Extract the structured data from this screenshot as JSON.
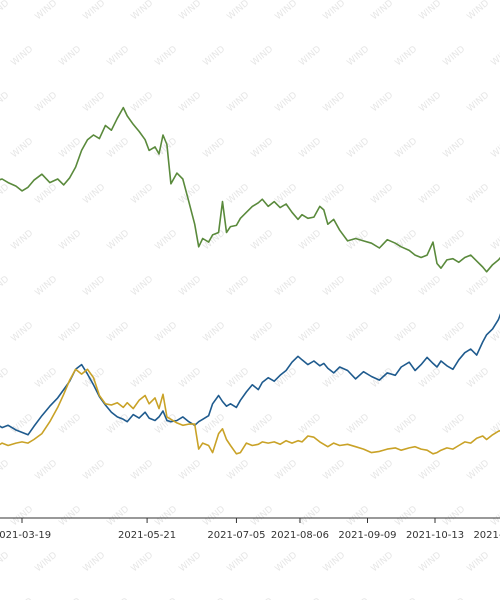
{
  "chart_data": {
    "type": "line",
    "title": "",
    "xlabel": "",
    "ylabel": "",
    "grid": false,
    "legend": "none",
    "watermark_text": "WIND",
    "x_ticks": [
      "2021-03-19",
      "2021-05-21",
      "2021-07-05",
      "2021-08-06",
      "2021-09-09",
      "2021-10-13",
      "2021-11-16"
    ],
    "series": [
      {
        "color": "#5a8a3c",
        "points": [
          [
            "2021-02-23",
            2.42
          ],
          [
            "2021-02-28",
            2.4
          ],
          [
            "2021-03-05",
            2.5
          ],
          [
            "2021-03-09",
            2.52
          ],
          [
            "2021-03-12",
            2.49
          ],
          [
            "2021-03-16",
            2.46
          ],
          [
            "2021-03-19",
            2.42
          ],
          [
            "2021-03-22",
            2.45
          ],
          [
            "2021-03-25",
            2.51
          ],
          [
            "2021-03-29",
            2.56
          ],
          [
            "2021-04-02",
            2.49
          ],
          [
            "2021-04-06",
            2.52
          ],
          [
            "2021-04-09",
            2.47
          ],
          [
            "2021-04-12",
            2.53
          ],
          [
            "2021-04-15",
            2.62
          ],
          [
            "2021-04-18",
            2.76
          ],
          [
            "2021-04-21",
            2.85
          ],
          [
            "2021-04-24",
            2.89
          ],
          [
            "2021-04-27",
            2.86
          ],
          [
            "2021-04-30",
            2.97
          ],
          [
            "2021-05-03",
            2.93
          ],
          [
            "2021-05-06",
            3.03
          ],
          [
            "2021-05-09",
            3.12
          ],
          [
            "2021-05-11",
            3.05
          ],
          [
            "2021-05-14",
            2.98
          ],
          [
            "2021-05-17",
            2.92
          ],
          [
            "2021-05-20",
            2.85
          ],
          [
            "2021-05-22",
            2.76
          ],
          [
            "2021-05-25",
            2.79
          ],
          [
            "2021-05-27",
            2.73
          ],
          [
            "2021-05-29",
            2.89
          ],
          [
            "2021-05-31",
            2.81
          ],
          [
            "2021-06-02",
            2.48
          ],
          [
            "2021-06-05",
            2.57
          ],
          [
            "2021-06-08",
            2.52
          ],
          [
            "2021-06-11",
            2.33
          ],
          [
            "2021-06-14",
            2.14
          ],
          [
            "2021-06-16",
            1.95
          ],
          [
            "2021-06-18",
            2.02
          ],
          [
            "2021-06-21",
            1.99
          ],
          [
            "2021-06-23",
            2.05
          ],
          [
            "2021-06-26",
            2.07
          ],
          [
            "2021-06-28",
            2.33
          ],
          [
            "2021-06-30",
            2.07
          ],
          [
            "2021-07-02",
            2.12
          ],
          [
            "2021-07-05",
            2.13
          ],
          [
            "2021-07-07",
            2.19
          ],
          [
            "2021-07-10",
            2.24
          ],
          [
            "2021-07-13",
            2.29
          ],
          [
            "2021-07-16",
            2.32
          ],
          [
            "2021-07-18",
            2.35
          ],
          [
            "2021-07-21",
            2.29
          ],
          [
            "2021-07-24",
            2.33
          ],
          [
            "2021-07-27",
            2.28
          ],
          [
            "2021-07-30",
            2.31
          ],
          [
            "2021-08-02",
            2.24
          ],
          [
            "2021-08-05",
            2.18
          ],
          [
            "2021-08-07",
            2.22
          ],
          [
            "2021-08-10",
            2.19
          ],
          [
            "2021-08-13",
            2.2
          ],
          [
            "2021-08-16",
            2.29
          ],
          [
            "2021-08-18",
            2.26
          ],
          [
            "2021-08-20",
            2.14
          ],
          [
            "2021-08-23",
            2.18
          ],
          [
            "2021-08-26",
            2.09
          ],
          [
            "2021-08-30",
            2.0
          ],
          [
            "2021-09-03",
            2.02
          ],
          [
            "2021-09-07",
            2.0
          ],
          [
            "2021-09-11",
            1.98
          ],
          [
            "2021-09-15",
            1.94
          ],
          [
            "2021-09-19",
            2.01
          ],
          [
            "2021-09-23",
            1.98
          ],
          [
            "2021-09-26",
            1.95
          ],
          [
            "2021-09-30",
            1.92
          ],
          [
            "2021-10-03",
            1.88
          ],
          [
            "2021-10-06",
            1.86
          ],
          [
            "2021-10-09",
            1.88
          ],
          [
            "2021-10-12",
            1.99
          ],
          [
            "2021-10-14",
            1.81
          ],
          [
            "2021-10-16",
            1.77
          ],
          [
            "2021-10-19",
            1.84
          ],
          [
            "2021-10-22",
            1.85
          ],
          [
            "2021-10-25",
            1.82
          ],
          [
            "2021-10-28",
            1.86
          ],
          [
            "2021-10-31",
            1.88
          ],
          [
            "2021-11-03",
            1.83
          ],
          [
            "2021-11-06",
            1.78
          ],
          [
            "2021-11-08",
            1.74
          ],
          [
            "2021-11-11",
            1.8
          ],
          [
            "2021-11-14",
            1.84
          ],
          [
            "2021-11-16",
            1.88
          ]
        ]
      },
      {
        "color": "#1f5b8e",
        "points": [
          [
            "2021-02-23",
            0.53
          ],
          [
            "2021-02-28",
            0.5
          ],
          [
            "2021-03-05",
            0.47
          ],
          [
            "2021-03-09",
            0.43
          ],
          [
            "2021-03-12",
            0.45
          ],
          [
            "2021-03-16",
            0.41
          ],
          [
            "2021-03-19",
            0.39
          ],
          [
            "2021-03-22",
            0.37
          ],
          [
            "2021-03-25",
            0.44
          ],
          [
            "2021-03-29",
            0.53
          ],
          [
            "2021-04-02",
            0.61
          ],
          [
            "2021-04-06",
            0.68
          ],
          [
            "2021-04-09",
            0.75
          ],
          [
            "2021-04-12",
            0.82
          ],
          [
            "2021-04-15",
            0.92
          ],
          [
            "2021-04-18",
            0.96
          ],
          [
            "2021-04-21",
            0.88
          ],
          [
            "2021-04-24",
            0.79
          ],
          [
            "2021-04-27",
            0.69
          ],
          [
            "2021-04-30",
            0.62
          ],
          [
            "2021-05-03",
            0.56
          ],
          [
            "2021-05-06",
            0.52
          ],
          [
            "2021-05-09",
            0.5
          ],
          [
            "2021-05-11",
            0.48
          ],
          [
            "2021-05-14",
            0.54
          ],
          [
            "2021-05-17",
            0.51
          ],
          [
            "2021-05-20",
            0.56
          ],
          [
            "2021-05-22",
            0.51
          ],
          [
            "2021-05-25",
            0.49
          ],
          [
            "2021-05-27",
            0.52
          ],
          [
            "2021-05-29",
            0.57
          ],
          [
            "2021-05-31",
            0.49
          ],
          [
            "2021-06-02",
            0.48
          ],
          [
            "2021-06-05",
            0.49
          ],
          [
            "2021-06-08",
            0.52
          ],
          [
            "2021-06-11",
            0.48
          ],
          [
            "2021-06-14",
            0.45
          ],
          [
            "2021-06-16",
            0.48
          ],
          [
            "2021-06-18",
            0.5
          ],
          [
            "2021-06-21",
            0.53
          ],
          [
            "2021-06-23",
            0.63
          ],
          [
            "2021-06-26",
            0.7
          ],
          [
            "2021-06-28",
            0.65
          ],
          [
            "2021-06-30",
            0.61
          ],
          [
            "2021-07-02",
            0.63
          ],
          [
            "2021-07-05",
            0.6
          ],
          [
            "2021-07-07",
            0.66
          ],
          [
            "2021-07-10",
            0.73
          ],
          [
            "2021-07-13",
            0.79
          ],
          [
            "2021-07-16",
            0.75
          ],
          [
            "2021-07-18",
            0.81
          ],
          [
            "2021-07-21",
            0.85
          ],
          [
            "2021-07-24",
            0.82
          ],
          [
            "2021-07-27",
            0.87
          ],
          [
            "2021-07-30",
            0.91
          ],
          [
            "2021-08-02",
            0.98
          ],
          [
            "2021-08-05",
            1.03
          ],
          [
            "2021-08-07",
            1.0
          ],
          [
            "2021-08-10",
            0.96
          ],
          [
            "2021-08-13",
            0.99
          ],
          [
            "2021-08-16",
            0.95
          ],
          [
            "2021-08-18",
            0.97
          ],
          [
            "2021-08-20",
            0.93
          ],
          [
            "2021-08-23",
            0.89
          ],
          [
            "2021-08-26",
            0.94
          ],
          [
            "2021-08-30",
            0.91
          ],
          [
            "2021-09-03",
            0.84
          ],
          [
            "2021-09-07",
            0.9
          ],
          [
            "2021-09-11",
            0.86
          ],
          [
            "2021-09-15",
            0.83
          ],
          [
            "2021-09-19",
            0.89
          ],
          [
            "2021-09-23",
            0.87
          ],
          [
            "2021-09-26",
            0.94
          ],
          [
            "2021-09-30",
            0.98
          ],
          [
            "2021-10-03",
            0.91
          ],
          [
            "2021-10-06",
            0.96
          ],
          [
            "2021-10-09",
            1.02
          ],
          [
            "2021-10-12",
            0.97
          ],
          [
            "2021-10-14",
            0.94
          ],
          [
            "2021-10-16",
            0.99
          ],
          [
            "2021-10-19",
            0.95
          ],
          [
            "2021-10-22",
            0.92
          ],
          [
            "2021-10-25",
            1.0
          ],
          [
            "2021-10-28",
            1.06
          ],
          [
            "2021-10-31",
            1.09
          ],
          [
            "2021-11-03",
            1.04
          ],
          [
            "2021-11-06",
            1.15
          ],
          [
            "2021-11-08",
            1.21
          ],
          [
            "2021-11-11",
            1.26
          ],
          [
            "2021-11-14",
            1.34
          ],
          [
            "2021-11-16",
            1.43
          ]
        ]
      },
      {
        "color": "#c9a227",
        "points": [
          [
            "2021-02-23",
            0.25
          ],
          [
            "2021-02-28",
            0.27
          ],
          [
            "2021-03-05",
            0.26
          ],
          [
            "2021-03-09",
            0.3
          ],
          [
            "2021-03-12",
            0.28
          ],
          [
            "2021-03-16",
            0.3
          ],
          [
            "2021-03-19",
            0.31
          ],
          [
            "2021-03-22",
            0.3
          ],
          [
            "2021-03-25",
            0.33
          ],
          [
            "2021-03-29",
            0.38
          ],
          [
            "2021-04-02",
            0.48
          ],
          [
            "2021-04-06",
            0.6
          ],
          [
            "2021-04-09",
            0.71
          ],
          [
            "2021-04-12",
            0.83
          ],
          [
            "2021-04-15",
            0.92
          ],
          [
            "2021-04-18",
            0.88
          ],
          [
            "2021-04-21",
            0.92
          ],
          [
            "2021-04-24",
            0.85
          ],
          [
            "2021-04-27",
            0.7
          ],
          [
            "2021-04-30",
            0.63
          ],
          [
            "2021-05-03",
            0.62
          ],
          [
            "2021-05-06",
            0.64
          ],
          [
            "2021-05-09",
            0.6
          ],
          [
            "2021-05-11",
            0.64
          ],
          [
            "2021-05-14",
            0.59
          ],
          [
            "2021-05-17",
            0.66
          ],
          [
            "2021-05-20",
            0.7
          ],
          [
            "2021-05-22",
            0.63
          ],
          [
            "2021-05-25",
            0.68
          ],
          [
            "2021-05-27",
            0.59
          ],
          [
            "2021-05-29",
            0.71
          ],
          [
            "2021-05-31",
            0.52
          ],
          [
            "2021-06-02",
            0.5
          ],
          [
            "2021-06-05",
            0.47
          ],
          [
            "2021-06-08",
            0.45
          ],
          [
            "2021-06-11",
            0.46
          ],
          [
            "2021-06-14",
            0.46
          ],
          [
            "2021-06-16",
            0.25
          ],
          [
            "2021-06-18",
            0.3
          ],
          [
            "2021-06-21",
            0.28
          ],
          [
            "2021-06-23",
            0.22
          ],
          [
            "2021-06-26",
            0.38
          ],
          [
            "2021-06-28",
            0.42
          ],
          [
            "2021-06-30",
            0.33
          ],
          [
            "2021-07-02",
            0.28
          ],
          [
            "2021-07-05",
            0.21
          ],
          [
            "2021-07-07",
            0.22
          ],
          [
            "2021-07-10",
            0.3
          ],
          [
            "2021-07-13",
            0.28
          ],
          [
            "2021-07-16",
            0.29
          ],
          [
            "2021-07-18",
            0.31
          ],
          [
            "2021-07-21",
            0.3
          ],
          [
            "2021-07-24",
            0.31
          ],
          [
            "2021-07-27",
            0.29
          ],
          [
            "2021-07-30",
            0.32
          ],
          [
            "2021-08-02",
            0.3
          ],
          [
            "2021-08-05",
            0.32
          ],
          [
            "2021-08-07",
            0.31
          ],
          [
            "2021-08-10",
            0.36
          ],
          [
            "2021-08-13",
            0.35
          ],
          [
            "2021-08-16",
            0.31
          ],
          [
            "2021-08-18",
            0.29
          ],
          [
            "2021-08-20",
            0.27
          ],
          [
            "2021-08-23",
            0.3
          ],
          [
            "2021-08-26",
            0.28
          ],
          [
            "2021-08-30",
            0.29
          ],
          [
            "2021-09-03",
            0.27
          ],
          [
            "2021-09-07",
            0.25
          ],
          [
            "2021-09-11",
            0.22
          ],
          [
            "2021-09-15",
            0.23
          ],
          [
            "2021-09-19",
            0.25
          ],
          [
            "2021-09-23",
            0.26
          ],
          [
            "2021-09-26",
            0.24
          ],
          [
            "2021-09-30",
            0.26
          ],
          [
            "2021-10-03",
            0.27
          ],
          [
            "2021-10-06",
            0.25
          ],
          [
            "2021-10-09",
            0.24
          ],
          [
            "2021-10-12",
            0.21
          ],
          [
            "2021-10-14",
            0.22
          ],
          [
            "2021-10-16",
            0.24
          ],
          [
            "2021-10-19",
            0.26
          ],
          [
            "2021-10-22",
            0.25
          ],
          [
            "2021-10-25",
            0.28
          ],
          [
            "2021-10-28",
            0.31
          ],
          [
            "2021-10-31",
            0.3
          ],
          [
            "2021-11-03",
            0.34
          ],
          [
            "2021-11-06",
            0.36
          ],
          [
            "2021-11-08",
            0.33
          ],
          [
            "2021-11-11",
            0.37
          ],
          [
            "2021-11-14",
            0.4
          ],
          [
            "2021-11-16",
            0.41
          ]
        ]
      }
    ]
  }
}
